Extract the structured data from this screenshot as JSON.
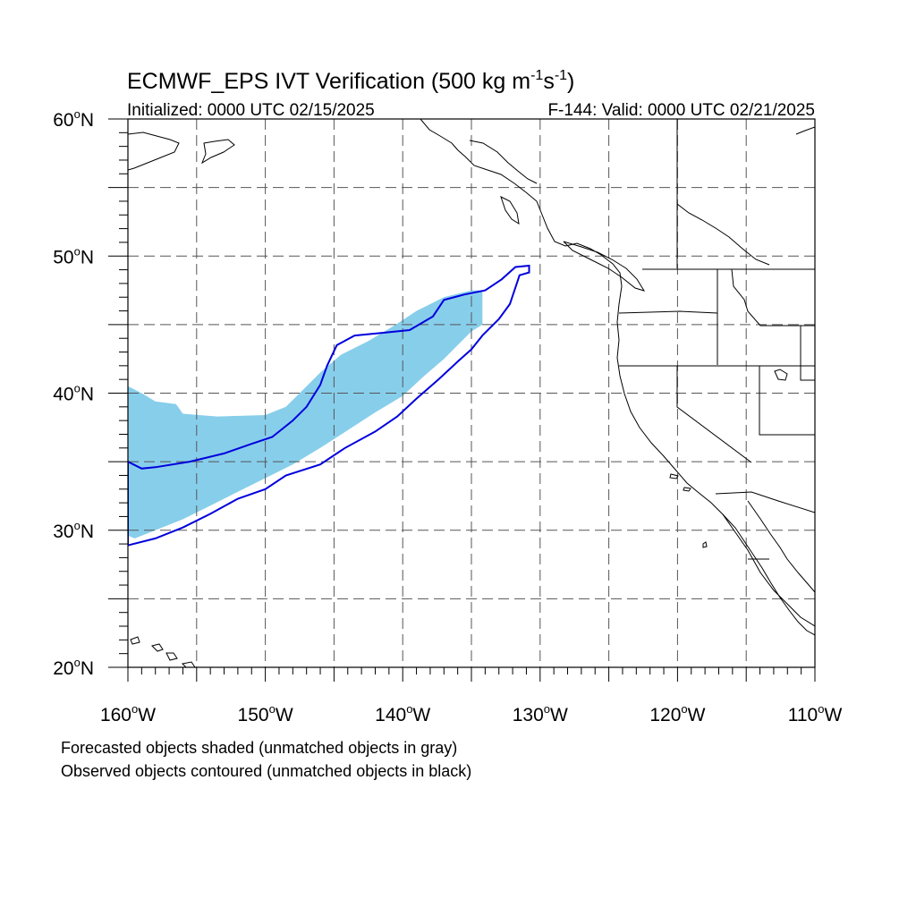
{
  "title": {
    "main": "ECMWF_EPS IVT Verification (500 kg m",
    "sup1": "-1",
    "mid": "s",
    "sup2": "-1",
    "end": ")"
  },
  "subtitle_left": "Initialized: 0000 UTC 02/15/2025",
  "subtitle_right": "F-144: Valid: 0000 UTC 02/21/2025",
  "lat_labels": [
    "20oN",
    "30oN",
    "40oN",
    "50oN",
    "60oN"
  ],
  "lat_ticks": [
    {
      "deg": "20",
      "suffix": "N",
      "value": 20
    },
    {
      "deg": "30",
      "suffix": "N",
      "value": 30
    },
    {
      "deg": "40",
      "suffix": "N",
      "value": 40
    },
    {
      "deg": "50",
      "suffix": "N",
      "value": 50
    },
    {
      "deg": "60",
      "suffix": "N",
      "value": 60
    }
  ],
  "lon_ticks": [
    {
      "deg": "160",
      "suffix": "W",
      "value": -160
    },
    {
      "deg": "150",
      "suffix": "W",
      "value": -150
    },
    {
      "deg": "140",
      "suffix": "W",
      "value": -140
    },
    {
      "deg": "130",
      "suffix": "W",
      "value": -130
    },
    {
      "deg": "120",
      "suffix": "W",
      "value": -120
    },
    {
      "deg": "110",
      "suffix": "W",
      "value": -110
    }
  ],
  "map_extent": {
    "lon_min": -160,
    "lon_max": -110,
    "lat_min": 20,
    "lat_max": 60
  },
  "grid_lines": {
    "lon_step": 5,
    "lat_step": 5,
    "style": "dashed"
  },
  "colors": {
    "forecast_fill": "#87ceeb",
    "observed_contour": "#0000dd",
    "coastline": "#000000",
    "grid": "#555555"
  },
  "forecast_object": {
    "outline": [
      [
        -160,
        40.5
      ],
      [
        -159,
        40
      ],
      [
        -158,
        39.4
      ],
      [
        -156.5,
        39.2
      ],
      [
        -156,
        38.5
      ],
      [
        -153.5,
        38.3
      ],
      [
        -150,
        38.4
      ],
      [
        -148.5,
        39
      ],
      [
        -147.5,
        40
      ],
      [
        -146,
        41.5
      ],
      [
        -144.5,
        42.8
      ],
      [
        -142.5,
        43.8
      ],
      [
        -140.5,
        45
      ],
      [
        -139,
        46
      ],
      [
        -137,
        47
      ],
      [
        -135,
        47.5
      ],
      [
        -134.2,
        47.5
      ],
      [
        -134.2,
        45
      ],
      [
        -135,
        44.5
      ],
      [
        -136,
        43.5
      ],
      [
        -137,
        42.5
      ],
      [
        -138.5,
        41.2
      ],
      [
        -140,
        39.8
      ],
      [
        -142,
        38.6
      ],
      [
        -144,
        37.3
      ],
      [
        -146,
        36
      ],
      [
        -148,
        34.8
      ],
      [
        -150,
        33.8
      ],
      [
        -152,
        32.8
      ],
      [
        -154,
        31.8
      ],
      [
        -156,
        30.8
      ],
      [
        -158,
        30
      ],
      [
        -159.5,
        29.4
      ],
      [
        -160,
        29.6
      ]
    ]
  },
  "observed_object": {
    "outline": [
      [
        -160,
        35
      ],
      [
        -159,
        34.5
      ],
      [
        -158,
        34.6
      ],
      [
        -155.5,
        35
      ],
      [
        -153,
        35.6
      ],
      [
        -151,
        36.3
      ],
      [
        -149.5,
        36.8
      ],
      [
        -148,
        38
      ],
      [
        -147,
        39
      ],
      [
        -146,
        40.6
      ],
      [
        -145.5,
        42
      ],
      [
        -144.8,
        43.5
      ],
      [
        -143.5,
        44.2
      ],
      [
        -141.5,
        44.4
      ],
      [
        -139.5,
        44.6
      ],
      [
        -137.8,
        45.6
      ],
      [
        -137,
        46.8
      ],
      [
        -135.5,
        47.2
      ],
      [
        -134,
        47.5
      ],
      [
        -132.8,
        48.3
      ],
      [
        -131.8,
        49.2
      ],
      [
        -130.8,
        49.3
      ],
      [
        -130.8,
        48.8
      ],
      [
        -131.5,
        48.6
      ],
      [
        -132.2,
        46.5
      ],
      [
        -133,
        45.4
      ],
      [
        -134.2,
        44.2
      ],
      [
        -135,
        43.2
      ],
      [
        -136,
        42.3
      ],
      [
        -137.4,
        41
      ],
      [
        -139,
        39.6
      ],
      [
        -140.4,
        38.3
      ],
      [
        -142,
        37.2
      ],
      [
        -144.2,
        36
      ],
      [
        -146,
        34.8
      ],
      [
        -148.5,
        34
      ],
      [
        -150,
        33
      ],
      [
        -152,
        32.3
      ],
      [
        -154,
        31.2
      ],
      [
        -156,
        30.2
      ],
      [
        -158,
        29.4
      ],
      [
        -160,
        28.9
      ]
    ]
  },
  "footnote_1": "Forecasted objects shaded (unmatched objects in gray)",
  "footnote_2": "Observed objects contoured (unmatched objects in black)"
}
